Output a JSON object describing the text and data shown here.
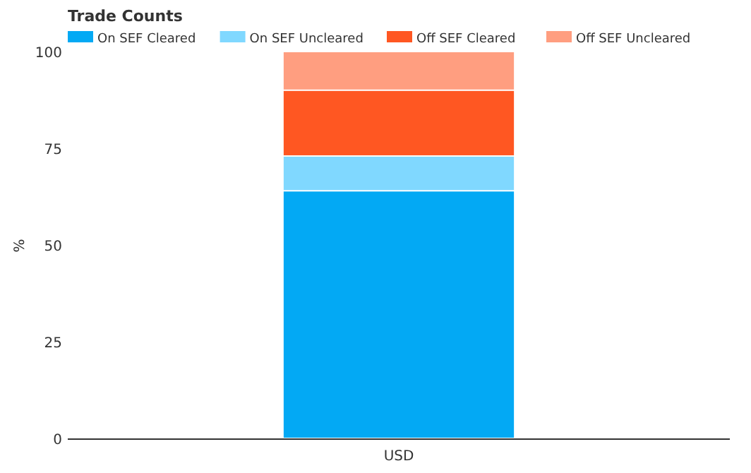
{
  "chart_data": {
    "type": "bar",
    "title": "Trade Counts",
    "ylabel": "%",
    "categories": [
      "USD"
    ],
    "stacked": true,
    "legend": "top left",
    "grid": false,
    "ylim": [
      0,
      100
    ],
    "yticks": [
      0,
      25,
      50,
      75,
      100
    ],
    "series": [
      {
        "name": "On SEF Cleared",
        "color": "#03a9f4",
        "values": [
          64
        ]
      },
      {
        "name": "On SEF Uncleared",
        "color": "#80d8ff",
        "values": [
          9
        ]
      },
      {
        "name": "Off SEF Cleared",
        "color": "#ff5722",
        "values": [
          17
        ]
      },
      {
        "name": "Off SEF Uncleared",
        "color": "#ff9e80",
        "values": [
          10
        ]
      }
    ]
  }
}
